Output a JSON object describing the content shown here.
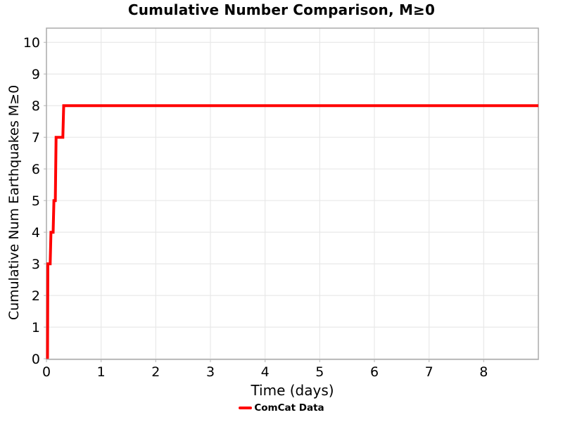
{
  "chart_data": {
    "type": "line",
    "subtype": "cumulative-step",
    "title": "Cumulative Number Comparison, M≥0",
    "xlabel": "Time (days)",
    "ylabel": "Cumulative Num Earthquakes M≥0",
    "xlim": [
      0,
      9.0
    ],
    "ylim": [
      -0.02,
      10.45
    ],
    "xticks": [
      0,
      1,
      2,
      3,
      4,
      5,
      6,
      7,
      8
    ],
    "yticks": [
      0,
      1,
      2,
      3,
      4,
      5,
      6,
      7,
      8,
      9,
      10
    ],
    "grid": true,
    "legend_position": "bottom-center",
    "series": [
      {
        "name": "ComCat Data",
        "color": "#ff0000",
        "line_width": 4,
        "x": [
          0.019,
          0.026,
          0.068,
          0.082,
          0.122,
          0.137,
          0.162,
          0.176,
          0.3,
          0.316,
          9.0
        ],
        "y": [
          0,
          3,
          3,
          4,
          4,
          5,
          5,
          7,
          7,
          8,
          8
        ]
      }
    ],
    "colors": {
      "line": "#ff0000",
      "grid": "#e8e8e8",
      "border": "#ababab",
      "tick_mark": "#c0c0c0",
      "text": "#000000"
    }
  }
}
